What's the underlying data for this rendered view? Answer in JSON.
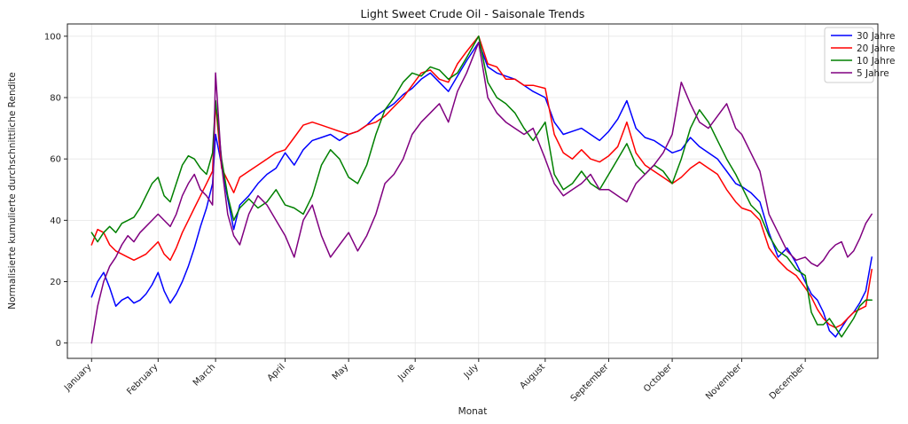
{
  "chart_data": {
    "type": "line",
    "title": "Light Sweet Crude Oil - Saisonale Trends",
    "xlabel": "Monat",
    "ylabel": "Normalisierte kumulierte durchschnittliche Rendite",
    "ylim": [
      -5,
      104
    ],
    "yticks": [
      0,
      20,
      40,
      60,
      80,
      100
    ],
    "xlim": [
      -8,
      260
    ],
    "categories": [
      "January",
      "February",
      "March",
      "April",
      "May",
      "June",
      "July",
      "August",
      "September",
      "October",
      "November",
      "December"
    ],
    "month_starts": [
      0,
      22,
      41,
      64,
      85,
      107,
      128,
      150,
      171,
      192,
      215,
      236
    ],
    "grid": true,
    "legend_position": "top-right",
    "series": [
      {
        "name": "30 Jahre",
        "color": "#0000ff",
        "x": [
          0,
          2,
          4,
          6,
          8,
          10,
          12,
          14,
          16,
          18,
          20,
          22,
          24,
          26,
          28,
          30,
          32,
          34,
          36,
          38,
          40,
          41,
          43,
          45,
          47,
          49,
          52,
          55,
          58,
          61,
          64,
          67,
          70,
          73,
          76,
          79,
          82,
          85,
          88,
          91,
          94,
          97,
          100,
          103,
          106,
          109,
          112,
          115,
          118,
          121,
          124,
          128,
          131,
          134,
          137,
          140,
          143,
          146,
          150,
          153,
          156,
          159,
          162,
          165,
          168,
          171,
          174,
          177,
          180,
          183,
          186,
          189,
          192,
          195,
          198,
          201,
          204,
          207,
          210,
          213,
          215,
          218,
          221,
          224,
          227,
          230,
          233,
          236,
          238,
          240,
          242,
          244,
          246,
          248,
          250,
          252,
          254,
          256,
          258
        ],
        "values": [
          15,
          20,
          23,
          18,
          12,
          14,
          15,
          13,
          14,
          16,
          19,
          23,
          17,
          13,
          16,
          20,
          25,
          31,
          38,
          44,
          52,
          68,
          58,
          47,
          37,
          45,
          48,
          52,
          55,
          57,
          62,
          58,
          63,
          66,
          67,
          68,
          66,
          68,
          69,
          71,
          74,
          76,
          78,
          81,
          83,
          86,
          88,
          85,
          82,
          87,
          92,
          98,
          90,
          88,
          87,
          86,
          84,
          82,
          80,
          72,
          68,
          69,
          70,
          68,
          66,
          69,
          73,
          79,
          70,
          67,
          66,
          64,
          62,
          63,
          67,
          64,
          62,
          60,
          56,
          52,
          51,
          49,
          46,
          36,
          28,
          31,
          26,
          20,
          16,
          14,
          10,
          4,
          2,
          5,
          8,
          10,
          13,
          17,
          28
        ]
      },
      {
        "name": "20 Jahre",
        "color": "#ff0000",
        "x": [
          0,
          2,
          4,
          6,
          8,
          10,
          12,
          14,
          16,
          18,
          20,
          22,
          24,
          26,
          28,
          30,
          32,
          34,
          36,
          38,
          40,
          41,
          43,
          45,
          47,
          49,
          52,
          55,
          58,
          61,
          64,
          67,
          70,
          73,
          76,
          79,
          82,
          85,
          88,
          91,
          94,
          97,
          100,
          103,
          106,
          109,
          112,
          115,
          118,
          121,
          124,
          128,
          131,
          134,
          137,
          140,
          143,
          146,
          150,
          153,
          156,
          159,
          162,
          165,
          168,
          171,
          174,
          177,
          180,
          183,
          186,
          189,
          192,
          195,
          198,
          201,
          204,
          207,
          210,
          213,
          215,
          218,
          221,
          224,
          227,
          230,
          233,
          236,
          238,
          240,
          242,
          244,
          246,
          248,
          250,
          252,
          254,
          256,
          258
        ],
        "values": [
          32,
          37,
          36,
          32,
          30,
          29,
          28,
          27,
          28,
          29,
          31,
          33,
          29,
          27,
          31,
          36,
          40,
          44,
          48,
          52,
          56,
          78,
          57,
          53,
          49,
          54,
          56,
          58,
          60,
          62,
          63,
          67,
          71,
          72,
          71,
          70,
          69,
          68,
          69,
          71,
          72,
          74,
          77,
          80,
          84,
          88,
          89,
          86,
          85,
          91,
          95,
          100,
          91,
          90,
          86,
          86,
          84,
          84,
          83,
          68,
          62,
          60,
          63,
          60,
          59,
          61,
          64,
          72,
          62,
          58,
          56,
          54,
          52,
          54,
          57,
          59,
          57,
          55,
          50,
          46,
          44,
          43,
          40,
          31,
          27,
          24,
          22,
          18,
          15,
          11,
          8,
          6,
          5,
          6,
          8,
          10,
          11,
          12,
          24
        ]
      },
      {
        "name": "10 Jahre",
        "color": "#008000",
        "x": [
          0,
          2,
          4,
          6,
          8,
          10,
          12,
          14,
          16,
          18,
          20,
          22,
          24,
          26,
          28,
          30,
          32,
          34,
          36,
          38,
          40,
          41,
          43,
          45,
          47,
          49,
          52,
          55,
          58,
          61,
          64,
          67,
          70,
          73,
          76,
          79,
          82,
          85,
          88,
          91,
          94,
          97,
          100,
          103,
          106,
          109,
          112,
          115,
          118,
          121,
          124,
          128,
          131,
          134,
          137,
          140,
          143,
          146,
          150,
          153,
          156,
          159,
          162,
          165,
          168,
          171,
          174,
          177,
          180,
          183,
          186,
          189,
          192,
          195,
          198,
          201,
          204,
          207,
          210,
          213,
          215,
          218,
          221,
          224,
          227,
          230,
          233,
          236,
          238,
          240,
          242,
          244,
          246,
          248,
          250,
          252,
          254,
          256,
          258
        ],
        "values": [
          36,
          33,
          36,
          38,
          36,
          39,
          40,
          41,
          44,
          48,
          52,
          54,
          48,
          46,
          52,
          58,
          61,
          60,
          57,
          55,
          62,
          79,
          60,
          48,
          40,
          44,
          47,
          44,
          46,
          50,
          45,
          44,
          42,
          48,
          58,
          63,
          60,
          54,
          52,
          58,
          68,
          76,
          80,
          85,
          88,
          87,
          90,
          89,
          86,
          88,
          93,
          100,
          85,
          80,
          78,
          75,
          70,
          66,
          72,
          55,
          50,
          52,
          56,
          52,
          50,
          55,
          60,
          65,
          58,
          55,
          58,
          56,
          52,
          60,
          70,
          76,
          72,
          66,
          60,
          55,
          51,
          45,
          42,
          35,
          30,
          28,
          24,
          22,
          10,
          6,
          6,
          8,
          5,
          2,
          5,
          8,
          12,
          14,
          14
        ]
      },
      {
        "name": "5 Jahre",
        "color": "#800080",
        "x": [
          0,
          2,
          4,
          6,
          8,
          10,
          12,
          14,
          16,
          18,
          20,
          22,
          24,
          26,
          28,
          30,
          32,
          34,
          36,
          38,
          40,
          41,
          43,
          45,
          47,
          49,
          52,
          55,
          58,
          61,
          64,
          67,
          70,
          73,
          76,
          79,
          82,
          85,
          88,
          91,
          94,
          97,
          100,
          103,
          106,
          109,
          112,
          115,
          118,
          121,
          124,
          128,
          131,
          134,
          137,
          140,
          143,
          146,
          150,
          153,
          156,
          159,
          162,
          165,
          168,
          171,
          174,
          177,
          180,
          183,
          186,
          189,
          192,
          195,
          198,
          201,
          204,
          207,
          210,
          213,
          215,
          218,
          221,
          224,
          227,
          230,
          233,
          236,
          238,
          240,
          242,
          244,
          246,
          248,
          250,
          252,
          254,
          256,
          258
        ],
        "values": [
          0,
          12,
          20,
          25,
          28,
          32,
          35,
          33,
          36,
          38,
          40,
          42,
          40,
          38,
          42,
          48,
          52,
          55,
          50,
          48,
          45,
          88,
          58,
          42,
          35,
          32,
          42,
          48,
          45,
          40,
          35,
          28,
          40,
          45,
          35,
          28,
          32,
          36,
          30,
          35,
          42,
          52,
          55,
          60,
          68,
          72,
          75,
          78,
          72,
          82,
          88,
          98,
          80,
          75,
          72,
          70,
          68,
          70,
          60,
          52,
          48,
          50,
          52,
          55,
          50,
          50,
          48,
          46,
          52,
          55,
          58,
          62,
          68,
          85,
          78,
          72,
          70,
          74,
          78,
          70,
          68,
          62,
          56,
          42,
          36,
          30,
          27,
          28,
          26,
          25,
          27,
          30,
          32,
          33,
          28,
          30,
          34,
          39,
          42
        ]
      }
    ]
  }
}
